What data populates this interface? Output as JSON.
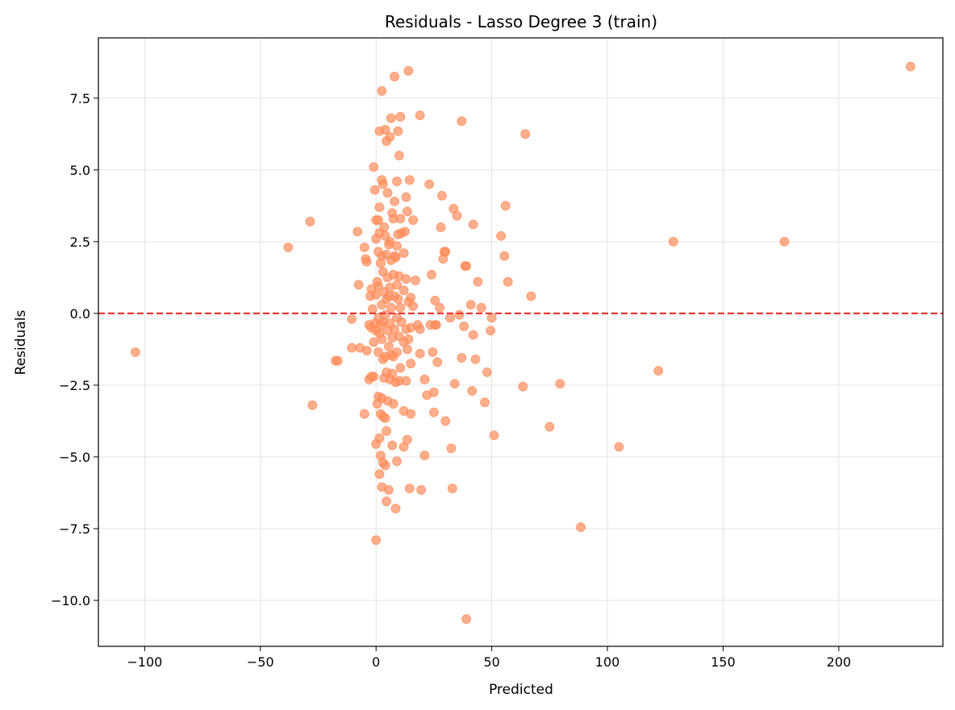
{
  "chart_data": {
    "type": "scatter",
    "title": "Residuals - Lasso Degree 3 (train)",
    "xlabel": "Predicted",
    "ylabel": "Residuals",
    "xlim": [
      -120,
      245
    ],
    "ylim": [
      -11.6,
      9.6
    ],
    "xticks": [
      -100,
      -50,
      0,
      50,
      100,
      150,
      200
    ],
    "xtick_labels": [
      "−100",
      "−50",
      "0",
      "50",
      "100",
      "150",
      "200"
    ],
    "yticks": [
      -10.0,
      -7.5,
      -5.0,
      -2.5,
      0.0,
      2.5,
      5.0,
      7.5
    ],
    "ytick_labels": [
      "−10.0",
      "−7.5",
      "−5.0",
      "−2.5",
      "0.0",
      "2.5",
      "5.0",
      "7.5"
    ],
    "grid": true,
    "reference_line": {
      "y": 0,
      "style": "dashed",
      "color": "#e53935"
    },
    "marker_color": "#ff8c5a",
    "points": [
      [
        -104,
        -1.35
      ],
      [
        -38,
        2.3
      ],
      [
        -28.5,
        3.2
      ],
      [
        -27.5,
        -3.2
      ],
      [
        -17.5,
        -1.65
      ],
      [
        -16.5,
        -1.65
      ],
      [
        -10.5,
        -0.2
      ],
      [
        -10.5,
        -1.2
      ],
      [
        -8,
        2.85
      ],
      [
        -7.5,
        1.0
      ],
      [
        -7,
        -1.2
      ],
      [
        -5,
        2.3
      ],
      [
        -5,
        -3.5
      ],
      [
        -4.5,
        1.9
      ],
      [
        -4,
        1.8
      ],
      [
        -4,
        -1.3
      ],
      [
        -3,
        -0.4
      ],
      [
        -3,
        -2.3
      ],
      [
        -2.5,
        0.6
      ],
      [
        -2,
        -0.5
      ],
      [
        -2,
        0.85
      ],
      [
        -2,
        -2.2
      ],
      [
        -1.5,
        0.15
      ],
      [
        -1,
        5.1
      ],
      [
        -1,
        -1.0
      ],
      [
        -1,
        -2.2
      ],
      [
        -0.5,
        4.3
      ],
      [
        -0.5,
        -0.35
      ],
      [
        0,
        3.25
      ],
      [
        0,
        2.6
      ],
      [
        0,
        0.65
      ],
      [
        0,
        -0.6
      ],
      [
        0,
        -4.55
      ],
      [
        0,
        -7.9
      ],
      [
        0.5,
        1.1
      ],
      [
        0.5,
        -3.15
      ],
      [
        1,
        3.25
      ],
      [
        1,
        2.15
      ],
      [
        1,
        0.95
      ],
      [
        1,
        -0.15
      ],
      [
        1,
        -1.35
      ],
      [
        1,
        -2.9
      ],
      [
        1.5,
        6.35
      ],
      [
        1.5,
        3.7
      ],
      [
        1.5,
        2.8
      ],
      [
        1.5,
        -0.7
      ],
      [
        1.5,
        -4.35
      ],
      [
        1.5,
        -5.6
      ],
      [
        2,
        1.75
      ],
      [
        2,
        -0.4
      ],
      [
        2,
        -3.5
      ],
      [
        2,
        -4.95
      ],
      [
        2.5,
        7.75
      ],
      [
        2.5,
        4.65
      ],
      [
        2.5,
        2.0
      ],
      [
        2.5,
        0.3
      ],
      [
        2.5,
        -0.9
      ],
      [
        2.5,
        -2.95
      ],
      [
        2.5,
        -6.05
      ],
      [
        3,
        4.5
      ],
      [
        3,
        1.45
      ],
      [
        3,
        -0.3
      ],
      [
        3,
        -1.6
      ],
      [
        3,
        -3.6
      ],
      [
        3,
        -5.2
      ],
      [
        3.5,
        3.0
      ],
      [
        3.5,
        0.75
      ],
      [
        3.5,
        -2.25
      ],
      [
        4,
        6.4
      ],
      [
        4,
        2.7
      ],
      [
        4,
        -0.05
      ],
      [
        4,
        -1.5
      ],
      [
        4,
        -3.65
      ],
      [
        4,
        -5.3
      ],
      [
        4.5,
        6.0
      ],
      [
        4.5,
        2.05
      ],
      [
        4.5,
        0.5
      ],
      [
        4.5,
        -2.05
      ],
      [
        4.5,
        -4.1
      ],
      [
        4.5,
        -6.55
      ],
      [
        5,
        4.2
      ],
      [
        5,
        1.25
      ],
      [
        5,
        -0.6
      ],
      [
        5,
        -3.05
      ],
      [
        5.5,
        2.4
      ],
      [
        5.5,
        0.6
      ],
      [
        5.5,
        -1.15
      ],
      [
        5.5,
        -6.15
      ],
      [
        6,
        6.15
      ],
      [
        6,
        2.5
      ],
      [
        6,
        0.9
      ],
      [
        6,
        -0.35
      ],
      [
        6,
        -2.3
      ],
      [
        6.5,
        6.8
      ],
      [
        6.5,
        1.85
      ],
      [
        6.5,
        0.2
      ],
      [
        6.5,
        -1.45
      ],
      [
        7,
        3.5
      ],
      [
        7,
        -0.85
      ],
      [
        7,
        -4.6
      ],
      [
        7,
        -2.1
      ],
      [
        7.5,
        3.3
      ],
      [
        7.5,
        1.35
      ],
      [
        7.5,
        -1.5
      ],
      [
        7.5,
        -3.15
      ],
      [
        8,
        8.25
      ],
      [
        8,
        3.9
      ],
      [
        8,
        2.0
      ],
      [
        8,
        0.6
      ],
      [
        8,
        -0.55
      ],
      [
        8.5,
        1.95
      ],
      [
        8.5,
        -2.4
      ],
      [
        8.5,
        -6.8
      ],
      [
        9,
        4.6
      ],
      [
        9,
        2.35
      ],
      [
        9,
        1.0
      ],
      [
        9,
        -0.15
      ],
      [
        9,
        -1.35
      ],
      [
        9,
        -5.15
      ],
      [
        9.5,
        6.35
      ],
      [
        9.5,
        2.75
      ],
      [
        9.5,
        0.5
      ],
      [
        10,
        5.5
      ],
      [
        10,
        1.3
      ],
      [
        10,
        -0.8
      ],
      [
        10,
        -2.35
      ],
      [
        10.5,
        6.85
      ],
      [
        10.5,
        3.3
      ],
      [
        10.5,
        0.2
      ],
      [
        10.5,
        -1.9
      ],
      [
        11,
        2.8
      ],
      [
        11,
        -0.3
      ],
      [
        12,
        2.1
      ],
      [
        12,
        0.8
      ],
      [
        12,
        -1.0
      ],
      [
        12,
        -3.4
      ],
      [
        12,
        -4.65
      ],
      [
        12.5,
        2.85
      ],
      [
        13,
        4.05
      ],
      [
        13,
        1.2
      ],
      [
        13,
        -0.55
      ],
      [
        13,
        -2.35
      ],
      [
        13.5,
        3.55
      ],
      [
        13.5,
        -1.25
      ],
      [
        13.5,
        -4.4
      ],
      [
        14,
        8.45
      ],
      [
        14,
        0.4
      ],
      [
        14,
        -0.9
      ],
      [
        14.5,
        4.65
      ],
      [
        14.5,
        -6.1
      ],
      [
        15,
        0.55
      ],
      [
        15,
        -0.5
      ],
      [
        15,
        -1.75
      ],
      [
        15,
        -3.5
      ],
      [
        16,
        3.25
      ],
      [
        16,
        0.25
      ],
      [
        17,
        1.15
      ],
      [
        18,
        -0.4
      ],
      [
        19,
        6.9
      ],
      [
        19,
        -0.55
      ],
      [
        19,
        -1.4
      ],
      [
        19.5,
        -6.15
      ],
      [
        21,
        -4.95
      ],
      [
        21,
        -2.3
      ],
      [
        22,
        -2.85
      ],
      [
        23,
        4.5
      ],
      [
        23.5,
        -0.4
      ],
      [
        24,
        1.35
      ],
      [
        24.5,
        -1.35
      ],
      [
        25,
        -2.75
      ],
      [
        25,
        -3.45
      ],
      [
        25.5,
        0.45
      ],
      [
        25.5,
        -0.4
      ],
      [
        26,
        -0.4
      ],
      [
        26.5,
        -1.7
      ],
      [
        27.5,
        0.2
      ],
      [
        28,
        3.0
      ],
      [
        28.5,
        4.1
      ],
      [
        29,
        1.9
      ],
      [
        29.5,
        2.15
      ],
      [
        30,
        2.15
      ],
      [
        30,
        -3.75
      ],
      [
        32,
        -0.15
      ],
      [
        32.5,
        -4.7
      ],
      [
        33,
        -6.1
      ],
      [
        33.5,
        3.65
      ],
      [
        34,
        -2.45
      ],
      [
        35,
        3.4
      ],
      [
        36,
        -0.05
      ],
      [
        37,
        6.7
      ],
      [
        37,
        -1.55
      ],
      [
        38,
        -0.45
      ],
      [
        38.5,
        1.65
      ],
      [
        39,
        1.65
      ],
      [
        39,
        -10.65
      ],
      [
        41,
        0.3
      ],
      [
        41.5,
        -2.7
      ],
      [
        42,
        3.1
      ],
      [
        42,
        -0.75
      ],
      [
        43,
        -1.6
      ],
      [
        44,
        1.1
      ],
      [
        45.5,
        0.2
      ],
      [
        47,
        -3.1
      ],
      [
        48,
        -2.05
      ],
      [
        49.5,
        -0.6
      ],
      [
        50,
        -0.15
      ],
      [
        51,
        -4.25
      ],
      [
        54,
        2.7
      ],
      [
        55.5,
        2.0
      ],
      [
        56,
        3.75
      ],
      [
        57,
        1.1
      ],
      [
        63.5,
        -2.55
      ],
      [
        64.5,
        6.25
      ],
      [
        67,
        0.6
      ],
      [
        75,
        -3.95
      ],
      [
        79.5,
        -2.45
      ],
      [
        88.5,
        -7.45
      ],
      [
        105,
        -4.65
      ],
      [
        122,
        -2.0
      ],
      [
        128.5,
        2.5
      ],
      [
        176.5,
        2.5
      ],
      [
        231,
        8.6
      ]
    ]
  }
}
